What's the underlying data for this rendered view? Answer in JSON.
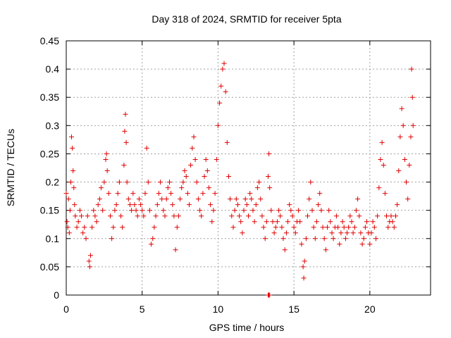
{
  "chart_data": {
    "type": "scatter",
    "title": "Day 318 of 2024, SRMTID for receiver 5pta",
    "xlabel": "GPS time / hours",
    "ylabel": "SRMTID / TECUs",
    "xlim": [
      0,
      24
    ],
    "ylim": [
      0,
      0.45
    ],
    "xticks": [
      0,
      5,
      10,
      15,
      20
    ],
    "xtick_labels": [
      "0",
      "5",
      "10",
      "15",
      "20"
    ],
    "yticks": [
      0,
      0.05,
      0.1,
      0.15,
      0.2,
      0.25,
      0.3,
      0.35,
      0.4,
      0.45
    ],
    "ytick_labels": [
      "0",
      "0.05",
      "0.1",
      "0.15",
      "0.2",
      "0.25",
      "0.3",
      "0.35",
      "0.4",
      "0.45"
    ],
    "grid": true,
    "marker": "plus",
    "marker_color": "#e00000",
    "series": [
      {
        "name": "SRMTID",
        "points": [
          [
            0.0,
            0.18
          ],
          [
            0.05,
            0.13
          ],
          [
            0.1,
            0.12
          ],
          [
            0.15,
            0.17
          ],
          [
            0.2,
            0.11
          ],
          [
            0.25,
            0.15
          ],
          [
            0.3,
            0.2
          ],
          [
            0.35,
            0.28
          ],
          [
            0.4,
            0.26
          ],
          [
            0.45,
            0.22
          ],
          [
            0.5,
            0.19
          ],
          [
            0.55,
            0.16
          ],
          [
            0.6,
            0.14
          ],
          [
            0.7,
            0.12
          ],
          [
            0.8,
            0.13
          ],
          [
            0.9,
            0.15
          ],
          [
            1.0,
            0.14
          ],
          [
            1.1,
            0.11
          ],
          [
            1.2,
            0.12
          ],
          [
            1.3,
            0.1
          ],
          [
            1.4,
            0.14
          ],
          [
            1.5,
            0.06
          ],
          [
            1.55,
            0.05
          ],
          [
            1.6,
            0.07
          ],
          [
            1.7,
            0.12
          ],
          [
            1.8,
            0.15
          ],
          [
            1.9,
            0.14
          ],
          [
            2.0,
            0.13
          ],
          [
            2.1,
            0.16
          ],
          [
            2.2,
            0.17
          ],
          [
            2.3,
            0.19
          ],
          [
            2.4,
            0.15
          ],
          [
            2.5,
            0.2
          ],
          [
            2.6,
            0.24
          ],
          [
            2.65,
            0.25
          ],
          [
            2.7,
            0.22
          ],
          [
            2.8,
            0.18
          ],
          [
            2.9,
            0.14
          ],
          [
            3.0,
            0.1
          ],
          [
            3.1,
            0.12
          ],
          [
            3.2,
            0.15
          ],
          [
            3.3,
            0.16
          ],
          [
            3.4,
            0.18
          ],
          [
            3.5,
            0.2
          ],
          [
            3.6,
            0.14
          ],
          [
            3.7,
            0.12
          ],
          [
            3.8,
            0.23
          ],
          [
            3.85,
            0.29
          ],
          [
            3.9,
            0.32
          ],
          [
            3.95,
            0.27
          ],
          [
            4.0,
            0.2
          ],
          [
            4.1,
            0.17
          ],
          [
            4.2,
            0.16
          ],
          [
            4.3,
            0.15
          ],
          [
            4.4,
            0.18
          ],
          [
            4.5,
            0.16
          ],
          [
            4.6,
            0.15
          ],
          [
            4.7,
            0.14
          ],
          [
            4.8,
            0.17
          ],
          [
            4.9,
            0.16
          ],
          [
            5.0,
            0.15
          ],
          [
            5.1,
            0.14
          ],
          [
            5.2,
            0.18
          ],
          [
            5.3,
            0.26
          ],
          [
            5.4,
            0.2
          ],
          [
            5.5,
            0.15
          ],
          [
            5.6,
            0.09
          ],
          [
            5.7,
            0.1
          ],
          [
            5.8,
            0.12
          ],
          [
            5.9,
            0.14
          ],
          [
            6.0,
            0.16
          ],
          [
            6.1,
            0.18
          ],
          [
            6.2,
            0.2
          ],
          [
            6.3,
            0.17
          ],
          [
            6.4,
            0.15
          ],
          [
            6.5,
            0.14
          ],
          [
            6.6,
            0.17
          ],
          [
            6.7,
            0.19
          ],
          [
            6.8,
            0.2
          ],
          [
            6.9,
            0.18
          ],
          [
            7.0,
            0.16
          ],
          [
            7.1,
            0.14
          ],
          [
            7.2,
            0.08
          ],
          [
            7.3,
            0.12
          ],
          [
            7.4,
            0.14
          ],
          [
            7.5,
            0.17
          ],
          [
            7.6,
            0.19
          ],
          [
            7.7,
            0.2
          ],
          [
            7.8,
            0.22
          ],
          [
            7.9,
            0.21
          ],
          [
            8.0,
            0.18
          ],
          [
            8.1,
            0.16
          ],
          [
            8.2,
            0.23
          ],
          [
            8.3,
            0.26
          ],
          [
            8.4,
            0.28
          ],
          [
            8.5,
            0.24
          ],
          [
            8.6,
            0.2
          ],
          [
            8.7,
            0.17
          ],
          [
            8.8,
            0.15
          ],
          [
            8.9,
            0.14
          ],
          [
            9.0,
            0.18
          ],
          [
            9.1,
            0.21
          ],
          [
            9.2,
            0.24
          ],
          [
            9.3,
            0.22
          ],
          [
            9.4,
            0.19
          ],
          [
            9.5,
            0.16
          ],
          [
            9.6,
            0.13
          ],
          [
            9.7,
            0.15
          ],
          [
            9.8,
            0.18
          ],
          [
            9.9,
            0.24
          ],
          [
            10.0,
            0.3
          ],
          [
            10.1,
            0.34
          ],
          [
            10.2,
            0.37
          ],
          [
            10.3,
            0.4
          ],
          [
            10.4,
            0.41
          ],
          [
            10.5,
            0.36
          ],
          [
            10.6,
            0.27
          ],
          [
            10.7,
            0.21
          ],
          [
            10.8,
            0.17
          ],
          [
            10.9,
            0.14
          ],
          [
            11.0,
            0.12
          ],
          [
            11.1,
            0.15
          ],
          [
            11.2,
            0.17
          ],
          [
            11.3,
            0.16
          ],
          [
            11.4,
            0.14
          ],
          [
            11.5,
            0.13
          ],
          [
            11.6,
            0.11
          ],
          [
            11.7,
            0.15
          ],
          [
            11.8,
            0.17
          ],
          [
            11.9,
            0.16
          ],
          [
            12.0,
            0.14
          ],
          [
            12.1,
            0.18
          ],
          [
            12.2,
            0.17
          ],
          [
            12.3,
            0.15
          ],
          [
            12.4,
            0.13
          ],
          [
            12.5,
            0.16
          ],
          [
            12.6,
            0.19
          ],
          [
            12.7,
            0.2
          ],
          [
            12.8,
            0.17
          ],
          [
            12.9,
            0.14
          ],
          [
            13.0,
            0.12
          ],
          [
            13.1,
            0.1
          ],
          [
            13.2,
            0.13
          ],
          [
            13.3,
            0.21
          ],
          [
            13.35,
            0.25
          ],
          [
            13.4,
            0.19
          ],
          [
            13.5,
            0.15
          ],
          [
            13.6,
            0.13
          ],
          [
            13.7,
            0.11
          ],
          [
            13.8,
            0.12
          ],
          [
            13.9,
            0.13
          ],
          [
            14.0,
            0.15
          ],
          [
            14.1,
            0.14
          ],
          [
            14.2,
            0.12
          ],
          [
            14.3,
            0.1
          ],
          [
            14.4,
            0.08
          ],
          [
            14.5,
            0.11
          ],
          [
            14.6,
            0.13
          ],
          [
            14.7,
            0.16
          ],
          [
            14.8,
            0.15
          ],
          [
            14.9,
            0.14
          ],
          [
            15.0,
            0.12
          ],
          [
            15.1,
            0.11
          ],
          [
            15.2,
            0.13
          ],
          [
            15.3,
            0.15
          ],
          [
            15.4,
            0.13
          ],
          [
            15.5,
            0.09
          ],
          [
            15.6,
            0.05
          ],
          [
            15.65,
            0.03
          ],
          [
            15.7,
            0.06
          ],
          [
            15.8,
            0.1
          ],
          [
            15.9,
            0.14
          ],
          [
            16.0,
            0.17
          ],
          [
            16.1,
            0.2
          ],
          [
            16.2,
            0.15
          ],
          [
            16.3,
            0.12
          ],
          [
            16.4,
            0.1
          ],
          [
            16.5,
            0.13
          ],
          [
            16.6,
            0.16
          ],
          [
            16.7,
            0.18
          ],
          [
            16.8,
            0.15
          ],
          [
            16.9,
            0.12
          ],
          [
            17.0,
            0.1
          ],
          [
            17.1,
            0.08
          ],
          [
            17.2,
            0.12
          ],
          [
            17.3,
            0.15
          ],
          [
            17.4,
            0.13
          ],
          [
            17.5,
            0.11
          ],
          [
            17.6,
            0.1
          ],
          [
            17.7,
            0.12
          ],
          [
            17.8,
            0.14
          ],
          [
            17.9,
            0.12
          ],
          [
            18.0,
            0.09
          ],
          [
            18.1,
            0.11
          ],
          [
            18.2,
            0.13
          ],
          [
            18.3,
            0.12
          ],
          [
            18.4,
            0.1
          ],
          [
            18.5,
            0.11
          ],
          [
            18.6,
            0.12
          ],
          [
            18.7,
            0.14
          ],
          [
            18.8,
            0.13
          ],
          [
            18.9,
            0.11
          ],
          [
            19.0,
            0.12
          ],
          [
            19.1,
            0.15
          ],
          [
            19.2,
            0.17
          ],
          [
            19.3,
            0.14
          ],
          [
            19.4,
            0.11
          ],
          [
            19.5,
            0.09
          ],
          [
            19.6,
            0.1
          ],
          [
            19.7,
            0.12
          ],
          [
            19.8,
            0.13
          ],
          [
            19.9,
            0.11
          ],
          [
            20.0,
            0.09
          ],
          [
            20.1,
            0.11
          ],
          [
            20.2,
            0.13
          ],
          [
            20.3,
            0.12
          ],
          [
            20.4,
            0.1
          ],
          [
            20.5,
            0.14
          ],
          [
            20.6,
            0.19
          ],
          [
            20.7,
            0.24
          ],
          [
            20.8,
            0.27
          ],
          [
            20.9,
            0.23
          ],
          [
            21.0,
            0.18
          ],
          [
            21.1,
            0.14
          ],
          [
            21.2,
            0.12
          ],
          [
            21.3,
            0.13
          ],
          [
            21.4,
            0.14
          ],
          [
            21.5,
            0.13
          ],
          [
            21.6,
            0.12
          ],
          [
            21.7,
            0.14
          ],
          [
            21.8,
            0.16
          ],
          [
            21.9,
            0.22
          ],
          [
            22.0,
            0.28
          ],
          [
            22.1,
            0.33
          ],
          [
            22.2,
            0.3
          ],
          [
            22.3,
            0.24
          ],
          [
            22.4,
            0.2
          ],
          [
            22.5,
            0.17
          ],
          [
            22.6,
            0.23
          ],
          [
            22.7,
            0.28
          ],
          [
            22.75,
            0.4
          ],
          [
            22.8,
            0.35
          ],
          [
            22.85,
            0.3
          ],
          [
            13.3,
            0.0
          ],
          [
            13.35,
            0.0
          ],
          [
            13.4,
            0.0
          ]
        ]
      }
    ]
  }
}
